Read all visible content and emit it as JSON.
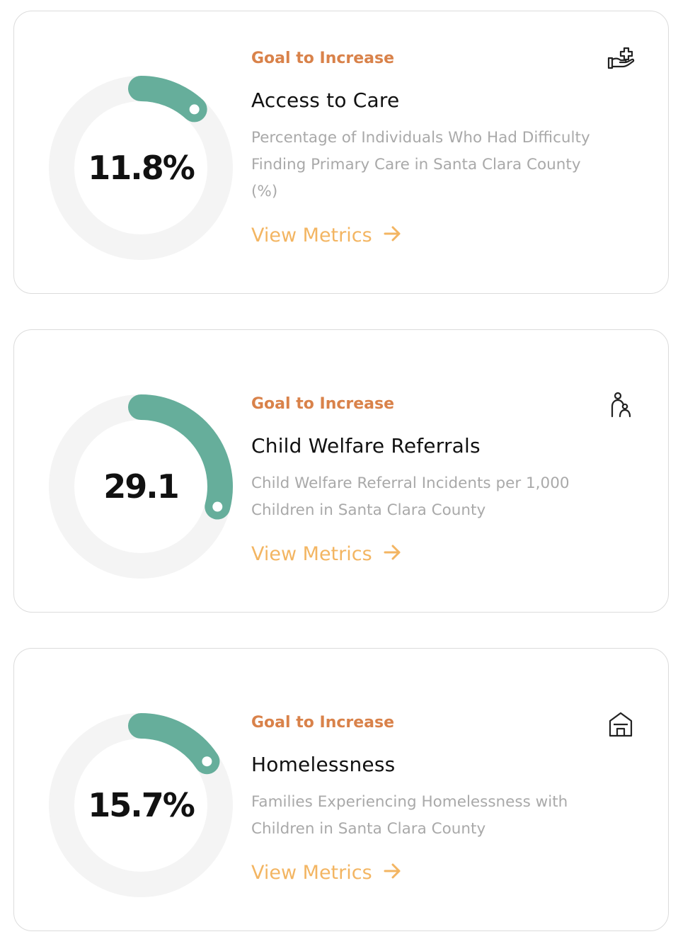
{
  "cards": [
    {
      "value_text": "11.8%",
      "progress_fraction": 0.118,
      "goal_label": "Goal to Increase",
      "title": "Access to Care",
      "description": "Percentage of Individuals Who Had Difficulty Finding Primary Care in Santa Clara County (%)",
      "link_label": "View Metrics",
      "icon": "hand-medical-icon"
    },
    {
      "value_text": "29.1",
      "progress_fraction": 0.291,
      "goal_label": "Goal to Increase",
      "title": "Child Welfare Referrals",
      "description": "Child Welfare Referral Incidents per 1,000 Children in Santa Clara County",
      "link_label": "View Metrics",
      "icon": "parent-child-icon"
    },
    {
      "value_text": "15.7%",
      "progress_fraction": 0.157,
      "goal_label": "Goal to Increase",
      "title": "Homelessness",
      "description": "Families Experiencing Homelessness with Children in Santa Clara County",
      "link_label": "View Metrics",
      "icon": "house-icon"
    }
  ],
  "colors": {
    "gauge_track": "#f4f4f4",
    "gauge_fill": "#66ae9b",
    "goal_label": "#d9824a",
    "link": "#f3b562",
    "description": "#a9a9a9"
  }
}
